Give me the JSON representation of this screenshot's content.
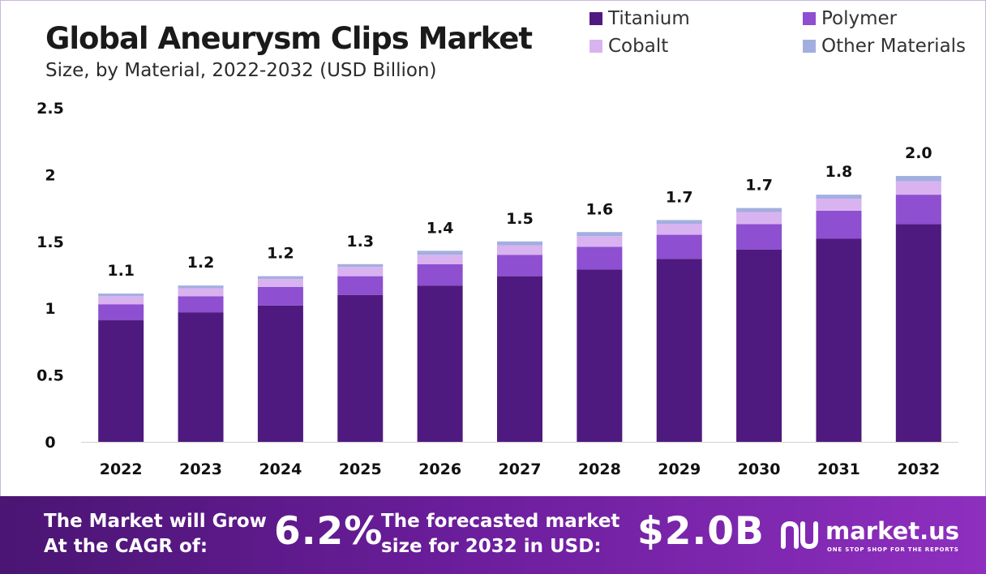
{
  "header": {
    "title": "Global Aneurysm Clips Market",
    "subtitle": "Size, by Material, 2022-2032 (USD Billion)"
  },
  "legend": [
    {
      "label": "Titanium",
      "color": "#4f1a7f"
    },
    {
      "label": "Polymer",
      "color": "#8e4fd0"
    },
    {
      "label": "Cobalt",
      "color": "#d9b3f0"
    },
    {
      "label": "Other Materials",
      "color": "#a3aee0"
    }
  ],
  "chart_data": {
    "type": "bar",
    "stacked": true,
    "categories": [
      "2022",
      "2023",
      "2024",
      "2025",
      "2026",
      "2027",
      "2028",
      "2029",
      "2030",
      "2031",
      "2032"
    ],
    "series": [
      {
        "name": "Titanium",
        "color": "#4f1a7f",
        "values": [
          0.91,
          0.97,
          1.02,
          1.1,
          1.17,
          1.24,
          1.29,
          1.37,
          1.44,
          1.52,
          1.63
        ]
      },
      {
        "name": "Polymer",
        "color": "#8e4fd0",
        "values": [
          0.12,
          0.12,
          0.14,
          0.14,
          0.16,
          0.16,
          0.17,
          0.18,
          0.19,
          0.21,
          0.22
        ]
      },
      {
        "name": "Cobalt",
        "color": "#d9b3f0",
        "values": [
          0.06,
          0.06,
          0.06,
          0.07,
          0.07,
          0.07,
          0.08,
          0.08,
          0.09,
          0.09,
          0.1
        ]
      },
      {
        "name": "Other Materials",
        "color": "#a3aee0",
        "values": [
          0.02,
          0.02,
          0.02,
          0.02,
          0.03,
          0.03,
          0.03,
          0.03,
          0.03,
          0.03,
          0.04
        ]
      }
    ],
    "totals_labels": [
      "1.1",
      "1.2",
      "1.2",
      "1.3",
      "1.4",
      "1.5",
      "1.6",
      "1.7",
      "1.7",
      "1.8",
      "2.0"
    ],
    "ylim": [
      0,
      2.5
    ],
    "yticks": [
      "0",
      "0.5",
      "1",
      "1.5",
      "2",
      "2.5"
    ],
    "ytick_values": [
      0,
      0.5,
      1,
      1.5,
      2,
      2.5
    ],
    "grid": false,
    "legend_position": "top-right"
  },
  "footer": {
    "cagr_label": "The Market will Grow\nAt the CAGR of:",
    "cagr_value": "6.2%",
    "forecast_label": "The forecasted market\nsize for 2032 in USD:",
    "forecast_value": "$2.0B",
    "brand_name": "market.us",
    "brand_tagline": "ONE STOP SHOP FOR THE REPORTS",
    "brand_icon": "market-us-logo-icon"
  }
}
